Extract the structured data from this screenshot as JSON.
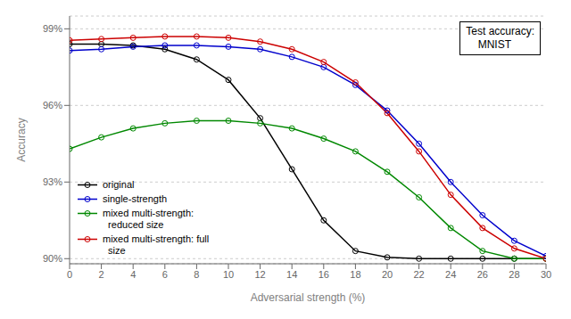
{
  "chart_data": {
    "type": "line",
    "title": "Test accuracy:\n    MNIST",
    "xlabel": "Adversarial strength (%)",
    "ylabel": "Accuracy",
    "x": [
      0,
      2,
      4,
      6,
      8,
      10,
      12,
      14,
      16,
      18,
      20,
      22,
      24,
      26,
      28,
      30
    ],
    "xlim": [
      0,
      30
    ],
    "xticks": [
      0,
      2,
      4,
      6,
      8,
      10,
      12,
      14,
      16,
      18,
      20,
      22,
      24,
      26,
      28,
      30
    ],
    "ylim": [
      89.8,
      99.5
    ],
    "yticks": [
      {
        "value": 90,
        "label": "90%"
      },
      {
        "value": 93,
        "label": "93%"
      },
      {
        "value": 96,
        "label": "96%"
      },
      {
        "value": 99,
        "label": "99%"
      }
    ],
    "grid": "y",
    "legend": "lower left",
    "marker": "o",
    "series": [
      {
        "name": "original",
        "color": "#000000",
        "values": [
          98.4,
          98.4,
          98.35,
          98.2,
          97.8,
          97.0,
          95.5,
          93.5,
          91.5,
          90.3,
          90.05,
          90.0,
          90.0,
          90.0,
          90.0,
          90.0
        ]
      },
      {
        "name": "single-strength",
        "color": "#0000cc",
        "values": [
          98.15,
          98.2,
          98.3,
          98.35,
          98.35,
          98.3,
          98.2,
          97.9,
          97.5,
          96.8,
          95.8,
          94.5,
          93.0,
          91.7,
          90.7,
          90.1
        ]
      },
      {
        "name": "mixed multi-strength:\n  reduced size",
        "color": "#008800",
        "values": [
          94.3,
          94.75,
          95.1,
          95.3,
          95.4,
          95.4,
          95.3,
          95.1,
          94.7,
          94.2,
          93.4,
          92.4,
          91.2,
          90.3,
          90.0,
          90.0
        ]
      },
      {
        "name": "mixed multi-strength: full\n  size",
        "color": "#cc0000",
        "values": [
          98.55,
          98.6,
          98.65,
          98.7,
          98.7,
          98.65,
          98.5,
          98.2,
          97.7,
          96.9,
          95.7,
          94.2,
          92.5,
          91.2,
          90.4,
          90.0
        ]
      }
    ]
  }
}
